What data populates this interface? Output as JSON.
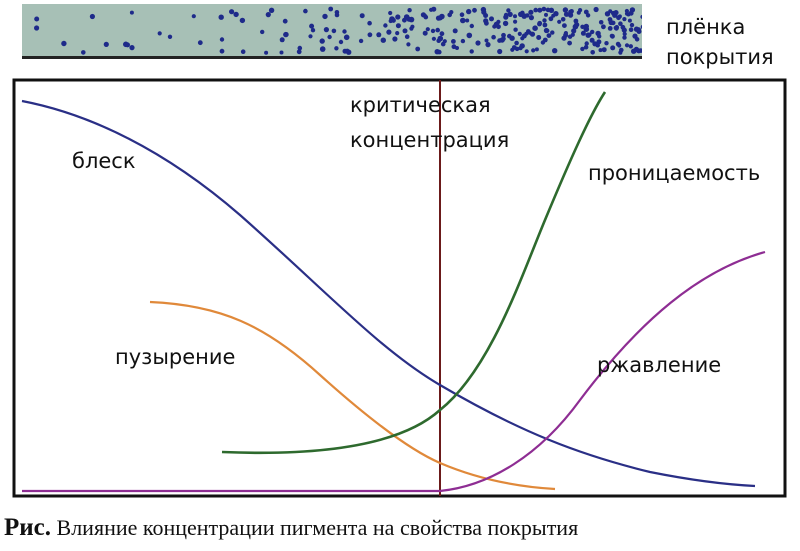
{
  "film": {
    "label_line1": "плёнка",
    "label_line2": "покрытия",
    "background_color": "#a7c0b6",
    "dot_color": "#1e2a8a"
  },
  "diagram": {
    "critical_label_line1": "критическая",
    "critical_label_line2": "концентрация",
    "critical_line_color": "#6b1a1a",
    "frame_color": "#111111",
    "curves": [
      {
        "id": "gloss",
        "label": "блеск",
        "color": "#2a2f86"
      },
      {
        "id": "blistering",
        "label": "пузырение",
        "color": "#e0893a"
      },
      {
        "id": "permeability",
        "label": "проницаемость",
        "color": "#2e6a2e"
      },
      {
        "id": "rusting",
        "label": "ржавление",
        "color": "#8e2d93"
      }
    ]
  },
  "caption": {
    "prefix": "Рис.",
    "text": "Влияние концентрации пигмента на свойства покрытия"
  }
}
